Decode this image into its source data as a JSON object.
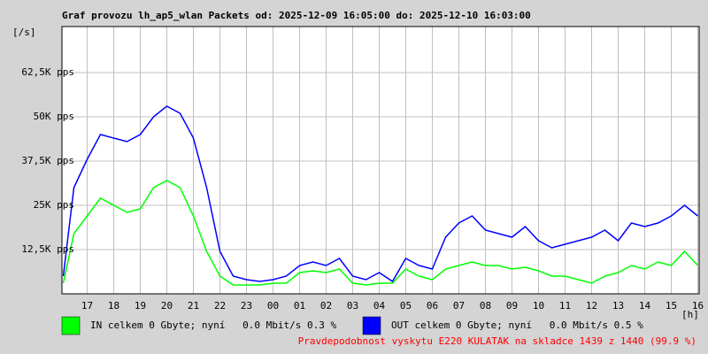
{
  "chart_data": {
    "type": "line",
    "title": "Graf provozu lh_ap5_wlan Packets od: 2025-12-09 16:05:00 do: 2025-12-10 16:03:00",
    "y_label": "[/s]",
    "x_label": "[h]",
    "footnote": "Pravdepodobnost vyskytu E220 KULATAK na skladce 1439 z 1440 (99.9 %)",
    "grid": true,
    "xlim": [
      16.05,
      40.05
    ],
    "ylim": [
      0,
      75500
    ],
    "yticks": [
      {
        "value": 12500,
        "label": "12,5K pps"
      },
      {
        "value": 25000,
        "label": "25K pps"
      },
      {
        "value": 37500,
        "label": "37,5K pps"
      },
      {
        "value": 50000,
        "label": "50K pps"
      },
      {
        "value": 62500,
        "label": "62,5K pps"
      }
    ],
    "xticks": [
      17,
      18,
      19,
      20,
      21,
      22,
      23,
      {
        "value": 24,
        "label": "00"
      },
      {
        "value": 25,
        "label": "01"
      },
      {
        "value": 26,
        "label": "02"
      },
      {
        "value": 27,
        "label": "03"
      },
      {
        "value": 28,
        "label": "04"
      },
      {
        "value": 29,
        "label": "05"
      },
      {
        "value": 30,
        "label": "06"
      },
      {
        "value": 31,
        "label": "07"
      },
      {
        "value": 32,
        "label": "08"
      },
      {
        "value": 33,
        "label": "09"
      },
      {
        "value": 34,
        "label": "10"
      },
      {
        "value": 35,
        "label": "11"
      },
      {
        "value": 36,
        "label": "12"
      },
      {
        "value": 37,
        "label": "13"
      },
      {
        "value": 38,
        "label": "14"
      },
      {
        "value": 39,
        "label": "15"
      },
      {
        "value": 40,
        "label": "16"
      }
    ],
    "x": [
      16.1,
      16.5,
      17,
      17.5,
      18,
      18.5,
      19,
      19.5,
      20,
      20.5,
      21,
      21.5,
      22,
      22.5,
      23,
      23.5,
      24,
      24.5,
      25,
      25.5,
      26,
      26.5,
      27,
      27.5,
      28,
      28.5,
      29,
      29.5,
      30,
      30.5,
      31,
      31.5,
      32,
      32.5,
      33,
      33.5,
      34,
      34.5,
      35,
      35.5,
      36,
      36.5,
      37,
      37.5,
      38,
      38.5,
      39,
      39.5,
      40
    ],
    "series": [
      {
        "name": "IN celkem 0 Gbyte; nyní   0.0 Mbit/s 0.3 %",
        "color": "#00ff00",
        "values": [
          3000,
          17000,
          22000,
          27000,
          25000,
          23000,
          24000,
          30000,
          32000,
          30000,
          22000,
          12000,
          5000,
          2500,
          2500,
          2500,
          3000,
          3000,
          6000,
          6500,
          6000,
          7000,
          3000,
          2500,
          3000,
          3000,
          7000,
          5000,
          4000,
          7000,
          8000,
          9000,
          8000,
          8000,
          7000,
          7500,
          6500,
          5000,
          5000,
          4000,
          3000,
          5000,
          6000,
          8000,
          7000,
          9000,
          8000,
          12000,
          8000
        ]
      },
      {
        "name": "OUT celkem 0 Gbyte; nyní   0.0 Mbit/s 0.5 %",
        "color": "#0000ff",
        "values": [
          5000,
          30000,
          38000,
          45000,
          44000,
          43000,
          45000,
          50000,
          53000,
          51000,
          44000,
          30000,
          12000,
          5000,
          4000,
          3500,
          4000,
          5000,
          8000,
          9000,
          8000,
          10000,
          5000,
          4000,
          6000,
          3500,
          10000,
          8000,
          7000,
          16000,
          20000,
          22000,
          18000,
          17000,
          16000,
          19000,
          15000,
          13000,
          14000,
          15000,
          16000,
          18000,
          15000,
          20000,
          19000,
          20000,
          22000,
          25000,
          22000
        ]
      }
    ]
  }
}
